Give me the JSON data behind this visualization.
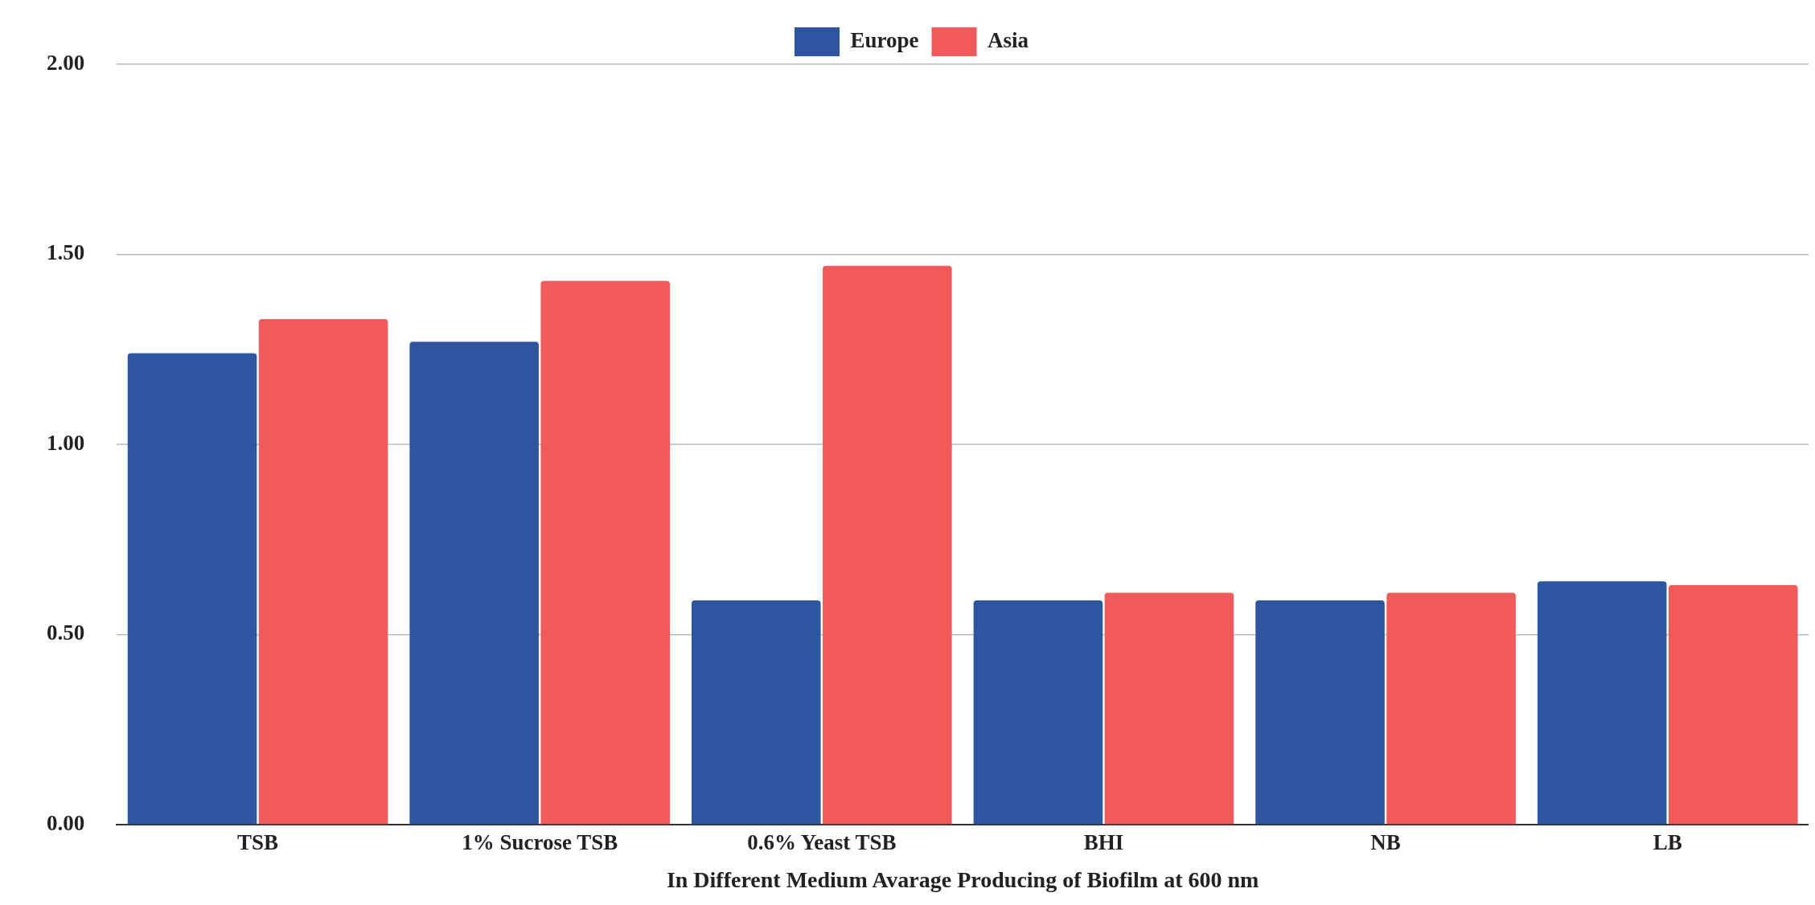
{
  "chart_data": {
    "type": "bar",
    "xlabel": "In Different Medium Avarage Producing of Biofilm at 600 nm",
    "categories": [
      "TSB",
      "1% Sucrose TSB",
      "0.6% Yeast TSB",
      "BHI",
      "NB",
      "LB"
    ],
    "series": [
      {
        "name": "Europe",
        "color": "#2e56a0",
        "values": [
          1.24,
          1.27,
          0.59,
          0.59,
          0.59,
          0.64
        ]
      },
      {
        "name": "Asia",
        "color": "#f05a5b",
        "values": [
          1.33,
          1.43,
          1.47,
          0.61,
          0.61,
          0.63
        ]
      }
    ],
    "ylim": [
      0,
      2
    ],
    "yticks": [
      {
        "value": 0,
        "label": "0.00"
      },
      {
        "value": 0.5,
        "label": "0.50"
      },
      {
        "value": 1,
        "label": "1.00"
      },
      {
        "value": 1.5,
        "label": "1.50"
      },
      {
        "value": 2,
        "label": "2.00"
      }
    ],
    "grid": "y",
    "legend": "top"
  }
}
